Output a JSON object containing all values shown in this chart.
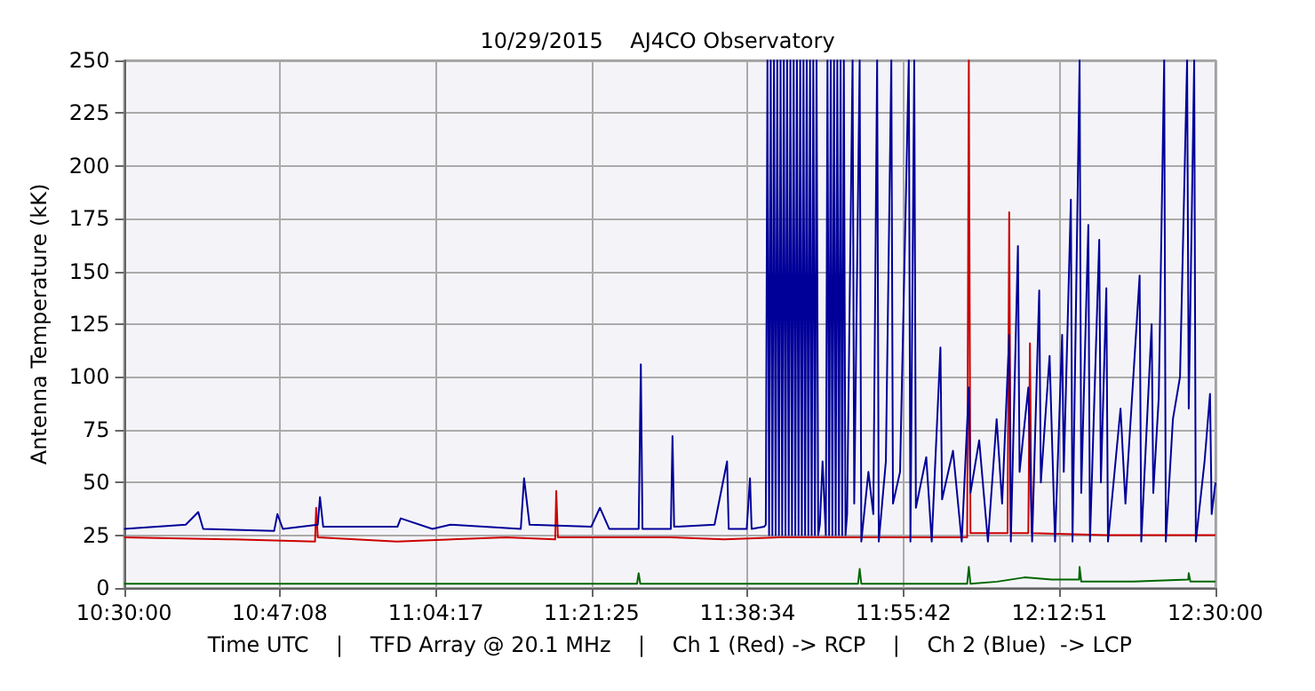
{
  "chart_data": {
    "type": "line",
    "title": "10/29/2015    AJ4CO Observatory",
    "xlabel": "Time UTC    |    TFD Array @ 20.1 MHz    |    Ch 1 (Red) -> RCP    |    Ch 2 (Blue)  -> LCP",
    "ylabel": "Antenna Temperature (kK)",
    "xlim": [
      10.5,
      12.5
    ],
    "xticks": [
      {
        "value": 10.5,
        "label": "10:30:00"
      },
      {
        "value": 10.785556,
        "label": "10:47:08"
      },
      {
        "value": 11.071389,
        "label": "11:04:17"
      },
      {
        "value": 11.356944,
        "label": "11:21:25"
      },
      {
        "value": 11.642778,
        "label": "11:38:34"
      },
      {
        "value": 11.928333,
        "label": "11:55:42"
      },
      {
        "value": 12.214167,
        "label": "12:12:51"
      },
      {
        "value": 12.5,
        "label": "12:30:00"
      }
    ],
    "ylim": [
      0,
      250
    ],
    "yticks": [
      0,
      25,
      50,
      75,
      100,
      125,
      150,
      175,
      200,
      225,
      250
    ],
    "grid": true,
    "line_style": "solid",
    "marker": "none",
    "series": [
      {
        "color": "#cc0000",
        "x": [
          10.5,
          10.7,
          10.85,
          10.852,
          10.855,
          11.0,
          11.2,
          11.29,
          11.292,
          11.295,
          11.5,
          11.6,
          11.7,
          11.85,
          12.045,
          12.048,
          12.051,
          12.119,
          12.122,
          12.125,
          12.157,
          12.16,
          12.163,
          12.3,
          12.5
        ],
        "values": [
          24,
          23,
          22,
          38,
          24,
          22,
          24,
          23,
          46,
          24,
          24,
          23,
          24,
          24,
          24,
          250,
          26,
          26,
          178,
          26,
          26,
          116,
          26,
          25,
          25
        ]
      },
      {
        "color": "#000099",
        "x": [
          10.5,
          10.613,
          10.636,
          10.645,
          10.775,
          10.781,
          10.791,
          10.855,
          10.859,
          10.865,
          11.001,
          11.007,
          11.065,
          11.098,
          11.227,
          11.233,
          11.243,
          11.356,
          11.372,
          11.389,
          11.443,
          11.447,
          11.45,
          11.502,
          11.505,
          11.508,
          11.582,
          11.605,
          11.608,
          11.641,
          11.647,
          11.65,
          11.673,
          11.676,
          11.679,
          11.682,
          11.685,
          11.688,
          11.691,
          11.694,
          11.697,
          11.7,
          11.703,
          11.706,
          11.709,
          11.712,
          11.715,
          11.718,
          11.721,
          11.724,
          11.727,
          11.73,
          11.733,
          11.736,
          11.739,
          11.742,
          11.745,
          11.748,
          11.751,
          11.754,
          11.757,
          11.76,
          11.763,
          11.766,
          11.769,
          11.772,
          11.775,
          11.78,
          11.786,
          11.789,
          11.792,
          11.795,
          11.798,
          11.801,
          11.804,
          11.807,
          11.81,
          11.813,
          11.816,
          11.819,
          11.822,
          11.825,
          11.835,
          11.838,
          11.848,
          11.851,
          11.864,
          11.873,
          11.88,
          11.883,
          11.896,
          11.906,
          11.909,
          11.922,
          11.938,
          11.941,
          11.948,
          11.951,
          11.97,
          11.98,
          11.996,
          11.999,
          12.019,
          12.035,
          12.048,
          12.051,
          12.067,
          12.083,
          12.099,
          12.109,
          12.122,
          12.125,
          12.138,
          12.141,
          12.157,
          12.164,
          12.177,
          12.18,
          12.196,
          12.206,
          12.219,
          12.222,
          12.235,
          12.238,
          12.251,
          12.254,
          12.267,
          12.27,
          12.287,
          12.29,
          12.3,
          12.303,
          12.326,
          12.335,
          12.361,
          12.364,
          12.383,
          12.386,
          12.396,
          12.406,
          12.409,
          12.422,
          12.435,
          12.448,
          12.451,
          12.461,
          12.464,
          12.48,
          12.49,
          12.493,
          12.5
        ],
        "values": [
          28,
          30,
          36,
          28,
          27,
          35,
          28,
          30,
          43,
          29,
          29,
          33,
          28,
          30,
          28,
          52,
          30,
          29,
          38,
          28,
          28,
          106,
          28,
          28,
          72,
          29,
          30,
          60,
          28,
          28,
          52,
          28,
          29,
          30,
          250,
          25,
          250,
          25,
          250,
          25,
          250,
          25,
          250,
          25,
          250,
          25,
          250,
          25,
          250,
          25,
          250,
          25,
          250,
          25,
          250,
          25,
          250,
          25,
          250,
          25,
          250,
          25,
          250,
          25,
          250,
          25,
          30,
          60,
          25,
          250,
          25,
          250,
          25,
          250,
          25,
          250,
          25,
          250,
          25,
          250,
          25,
          35,
          250,
          40,
          250,
          22,
          55,
          35,
          250,
          22,
          60,
          250,
          40,
          55,
          250,
          22,
          250,
          38,
          62,
          22,
          114,
          42,
          65,
          22,
          95,
          45,
          70,
          22,
          80,
          40,
          120,
          22,
          162,
          55,
          95,
          22,
          141,
          50,
          110,
          22,
          120,
          55,
          184,
          22,
          250,
          45,
          172,
          22,
          165,
          50,
          142,
          22,
          85,
          40,
          148,
          22,
          125,
          45,
          90,
          250,
          22,
          80,
          100,
          250,
          85,
          250,
          22,
          60,
          92,
          35,
          50
        ]
      },
      {
        "color": "#006600",
        "x": [
          10.5,
          11.44,
          11.443,
          11.446,
          11.845,
          11.848,
          11.851,
          12.045,
          12.048,
          12.051,
          12.1,
          12.15,
          12.2,
          12.25,
          12.251,
          12.254,
          12.35,
          12.45,
          12.451,
          12.454,
          12.5
        ],
        "values": [
          2,
          2,
          7,
          2,
          2,
          9,
          2,
          2,
          10,
          2,
          3,
          5,
          4,
          4,
          10,
          3,
          3,
          4,
          7,
          3,
          3
        ]
      }
    ]
  }
}
